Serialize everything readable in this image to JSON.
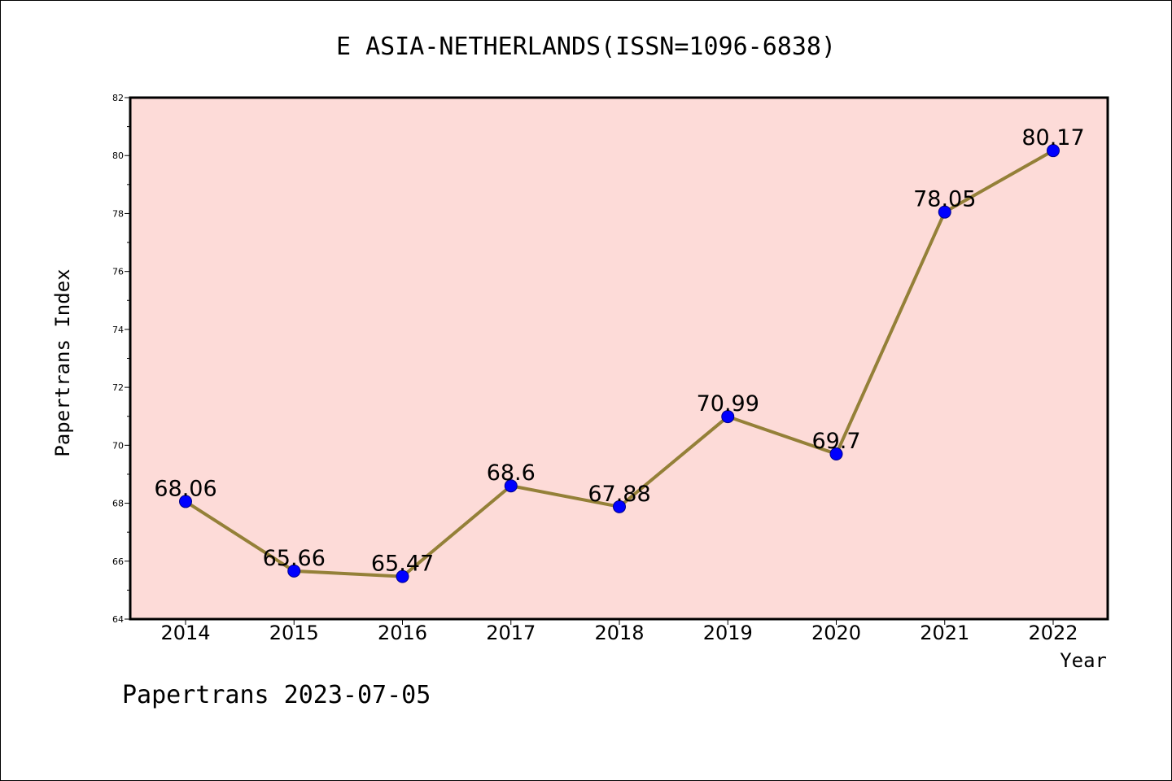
{
  "chart_data": {
    "type": "line",
    "title": "E ASIA-NETHERLANDS(ISSN=1096-6838)",
    "xlabel": "Year",
    "ylabel": "Papertrans Index",
    "x": [
      "2014",
      "2015",
      "2016",
      "2017",
      "2018",
      "2019",
      "2020",
      "2021",
      "2022"
    ],
    "series": [
      {
        "values": [
          68.06,
          65.66,
          65.47,
          68.6,
          67.88,
          70.99,
          69.7,
          78.05,
          80.17
        ],
        "labels": [
          "68.06",
          "65.66",
          "65.47",
          "68.6",
          "67.88",
          "70.99",
          "69.7",
          "78.05",
          "80.17"
        ]
      }
    ],
    "ylim": [
      64,
      82
    ],
    "yticks": [
      "64",
      "66",
      "68",
      "70",
      "72",
      "74",
      "76",
      "78",
      "80",
      "82"
    ],
    "grid": false,
    "colors": {
      "plot_background": "#fddbd8",
      "line": "#948038",
      "marker": "#0000ff",
      "frame": "#000000"
    }
  },
  "footer": "Papertrans 2023-07-05"
}
